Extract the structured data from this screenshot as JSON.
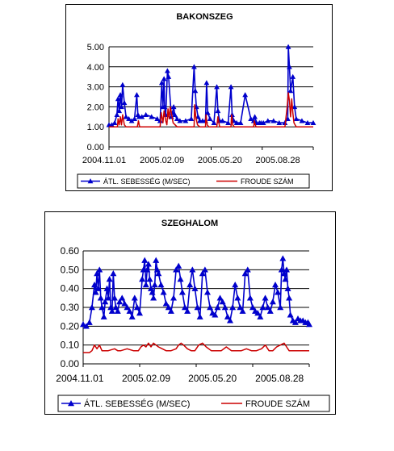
{
  "chart_data": [
    {
      "type": "line",
      "title": "BAKONSZEG",
      "ylim": [
        0,
        5
      ],
      "yticks": [
        "0.00",
        "1.00",
        "2.00",
        "3.00",
        "4.00",
        "5.00"
      ],
      "xtick_labels": [
        "2004.11.01",
        "2005.02.09",
        "2005.05.20",
        "2005.08.28"
      ],
      "xlim": [
        0,
        360
      ],
      "grid": "horizontal",
      "legend_position": "bottom",
      "series": [
        {
          "name": "ÁTL. SEBESSÉG (M/SEC)",
          "color": "#0000cc",
          "marker": "triangle",
          "x": [
            0,
            5,
            10,
            14,
            16,
            18,
            20,
            22,
            24,
            27,
            30,
            35,
            40,
            45,
            49,
            51,
            53,
            58,
            65,
            75,
            85,
            90,
            93,
            95,
            97,
            98,
            100,
            103,
            105,
            110,
            112,
            114,
            116,
            120,
            125,
            135,
            145,
            150,
            152,
            154,
            157,
            160,
            165,
            170,
            172,
            174,
            178,
            185,
            190,
            192,
            195,
            200,
            210,
            215,
            217,
            220,
            225,
            232,
            240,
            250,
            255,
            257,
            260,
            265,
            268,
            272,
            280,
            290,
            300,
            310,
            315,
            316,
            318,
            320,
            324,
            327,
            330,
            340,
            350,
            360
          ],
          "y": [
            1.1,
            1.1,
            1.2,
            1.6,
            2.4,
            1.8,
            2.6,
            2.0,
            3.1,
            2.2,
            1.5,
            1.4,
            1.3,
            1.4,
            2.6,
            1.6,
            1.5,
            1.5,
            1.6,
            1.5,
            1.4,
            1.3,
            3.2,
            2.0,
            3.4,
            2.0,
            1.6,
            3.8,
            3.5,
            1.5,
            1.7,
            2.0,
            1.6,
            1.4,
            1.3,
            1.3,
            1.4,
            4.0,
            2.8,
            2.0,
            1.5,
            1.3,
            1.3,
            1.3,
            3.2,
            1.7,
            1.4,
            1.2,
            3.0,
            1.8,
            1.3,
            1.3,
            1.2,
            3.0,
            1.6,
            1.3,
            1.2,
            1.2,
            2.6,
            1.4,
            1.3,
            1.5,
            1.2,
            1.2,
            1.2,
            1.2,
            1.3,
            1.3,
            1.2,
            1.2,
            1.4,
            5.0,
            4.0,
            2.8,
            3.5,
            2.0,
            1.4,
            1.3,
            1.2,
            1.2
          ]
        },
        {
          "name": "FROUDE SZÁM",
          "color": "#cc0000",
          "x": [
            0,
            15,
            16,
            18,
            20,
            22,
            24,
            27,
            30,
            50,
            52,
            54,
            90,
            92,
            95,
            97,
            100,
            102,
            104,
            106,
            108,
            110,
            113,
            120,
            150,
            151,
            153,
            156,
            160,
            170,
            171,
            173,
            176,
            190,
            192,
            195,
            215,
            216,
            218,
            221,
            255,
            256,
            259,
            262,
            310,
            314,
            316,
            318,
            320,
            322,
            324,
            326,
            330,
            360
          ],
          "y": [
            1.0,
            1.0,
            1.4,
            1.1,
            1.5,
            1.1,
            1.6,
            1.1,
            1.0,
            1.0,
            1.3,
            1.0,
            1.0,
            1.7,
            1.2,
            1.8,
            1.3,
            1.1,
            1.9,
            1.4,
            2.0,
            1.7,
            1.2,
            1.0,
            1.0,
            2.1,
            1.5,
            1.1,
            1.0,
            1.0,
            1.6,
            1.1,
            1.0,
            1.0,
            1.5,
            1.0,
            1.0,
            1.6,
            1.1,
            1.0,
            1.0,
            1.3,
            1.0,
            1.0,
            1.0,
            2.0,
            2.7,
            2.3,
            1.5,
            2.4,
            1.7,
            1.2,
            1.0,
            1.0
          ]
        }
      ]
    },
    {
      "type": "line",
      "title": "SZEGHALOM",
      "ylim": [
        0,
        0.6
      ],
      "yticks": [
        "0.00",
        "0.10",
        "0.20",
        "0.30",
        "0.40",
        "0.50",
        "0.60"
      ],
      "xtick_labels": [
        "2004.11.01",
        "2005.02.09",
        "2005.05.20",
        "2005.08.28"
      ],
      "xlim": [
        0,
        360
      ],
      "grid": "horizontal",
      "legend_position": "bottom",
      "series": [
        {
          "name": "ÁTL. SEBESSÉG (M/SEC)",
          "color": "#0000cc",
          "marker": "triangle",
          "x": [
            0,
            5,
            10,
            14,
            18,
            20,
            22,
            24,
            26,
            28,
            30,
            33,
            35,
            38,
            40,
            42,
            44,
            46,
            48,
            50,
            52,
            55,
            58,
            62,
            66,
            70,
            74,
            78,
            82,
            86,
            90,
            94,
            96,
            98,
            100,
            102,
            104,
            106,
            108,
            110,
            112,
            114,
            116,
            118,
            120,
            124,
            128,
            132,
            136,
            140,
            144,
            148,
            152,
            155,
            158,
            162,
            166,
            170,
            174,
            178,
            182,
            186,
            190,
            194,
            198,
            202,
            206,
            210,
            214,
            218,
            222,
            226,
            230,
            234,
            238,
            242,
            246,
            250,
            254,
            258,
            262,
            266,
            270,
            274,
            278,
            282,
            286,
            290,
            294,
            298,
            302,
            306,
            310,
            314,
            316,
            318,
            320,
            322,
            324,
            326,
            328,
            330,
            334,
            338,
            342,
            346,
            350,
            354,
            358,
            360
          ],
          "y": [
            0.21,
            0.2,
            0.22,
            0.3,
            0.42,
            0.38,
            0.48,
            0.4,
            0.5,
            0.35,
            0.3,
            0.25,
            0.33,
            0.4,
            0.35,
            0.45,
            0.3,
            0.28,
            0.48,
            0.35,
            0.3,
            0.28,
            0.33,
            0.35,
            0.32,
            0.3,
            0.28,
            0.25,
            0.35,
            0.3,
            0.27,
            0.45,
            0.5,
            0.55,
            0.42,
            0.5,
            0.53,
            0.45,
            0.4,
            0.38,
            0.35,
            0.42,
            0.55,
            0.5,
            0.48,
            0.42,
            0.38,
            0.32,
            0.3,
            0.28,
            0.35,
            0.5,
            0.52,
            0.45,
            0.38,
            0.3,
            0.28,
            0.42,
            0.5,
            0.4,
            0.3,
            0.25,
            0.48,
            0.5,
            0.38,
            0.3,
            0.27,
            0.26,
            0.3,
            0.35,
            0.33,
            0.3,
            0.25,
            0.23,
            0.3,
            0.42,
            0.35,
            0.3,
            0.28,
            0.48,
            0.5,
            0.35,
            0.3,
            0.28,
            0.27,
            0.25,
            0.3,
            0.35,
            0.3,
            0.28,
            0.33,
            0.42,
            0.38,
            0.3,
            0.5,
            0.56,
            0.48,
            0.45,
            0.5,
            0.4,
            0.35,
            0.26,
            0.23,
            0.22,
            0.24,
            0.23,
            0.23,
            0.22,
            0.22,
            0.21
          ]
        },
        {
          "name": "FROUDE SZÁM",
          "color": "#cc0000",
          "x": [
            0,
            10,
            14,
            18,
            22,
            26,
            30,
            40,
            50,
            55,
            60,
            70,
            80,
            88,
            92,
            96,
            100,
            104,
            108,
            112,
            116,
            120,
            126,
            132,
            140,
            148,
            152,
            156,
            160,
            166,
            172,
            178,
            184,
            190,
            196,
            204,
            212,
            220,
            228,
            236,
            244,
            252,
            260,
            268,
            276,
            284,
            290,
            296,
            302,
            308,
            314,
            320,
            324,
            328,
            332,
            340,
            350,
            360
          ],
          "y": [
            0.06,
            0.06,
            0.07,
            0.1,
            0.08,
            0.1,
            0.07,
            0.07,
            0.08,
            0.07,
            0.07,
            0.08,
            0.07,
            0.07,
            0.09,
            0.1,
            0.09,
            0.11,
            0.09,
            0.11,
            0.1,
            0.09,
            0.08,
            0.07,
            0.07,
            0.08,
            0.1,
            0.11,
            0.1,
            0.08,
            0.07,
            0.07,
            0.1,
            0.11,
            0.09,
            0.07,
            0.07,
            0.07,
            0.09,
            0.07,
            0.07,
            0.07,
            0.08,
            0.07,
            0.07,
            0.08,
            0.1,
            0.07,
            0.07,
            0.09,
            0.1,
            0.11,
            0.09,
            0.07,
            0.07,
            0.07,
            0.07,
            0.07
          ]
        }
      ]
    }
  ]
}
